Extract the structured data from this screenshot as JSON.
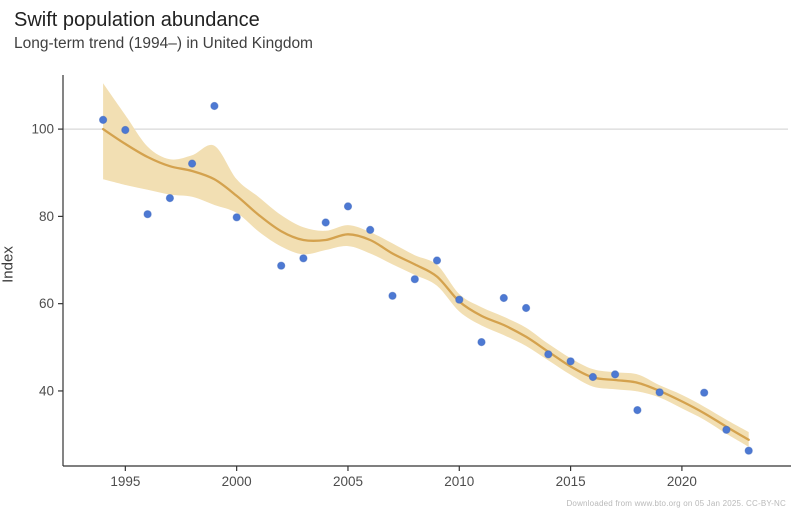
{
  "header": {
    "title": "Swift population abundance",
    "subtitle": "Long-term trend (1994–) in United Kingdom"
  },
  "footer": {
    "attribution": "Downloaded from www.bto.org on 05 Jan 2025. CC-BY-NC"
  },
  "chart_data": {
    "type": "scatter",
    "title": "Swift population abundance",
    "subtitle": "Long-term trend (1994–) in United Kingdom",
    "xlabel": "",
    "ylabel": "Index",
    "legend": "none",
    "grid": "single horizontal reference line at index 100",
    "reference_line_y": 100,
    "xlim": [
      1992.2,
      2024.9
    ],
    "ylim": [
      22.8,
      112.4
    ],
    "x_ticks": [
      1995,
      2000,
      2005,
      2010,
      2015,
      2020
    ],
    "y_ticks": [
      40,
      60,
      80,
      100
    ],
    "years": [
      1994,
      1995,
      1996,
      1997,
      1998,
      1999,
      2000,
      2001,
      2002,
      2003,
      2004,
      2005,
      2006,
      2007,
      2008,
      2009,
      2010,
      2011,
      2012,
      2013,
      2014,
      2015,
      2016,
      2017,
      2018,
      2019,
      2020,
      2021,
      2022,
      2023
    ],
    "series": [
      {
        "name": "annual index points",
        "type": "scatter",
        "values": [
          102.1,
          99.8,
          80.5,
          84.2,
          92.1,
          105.3,
          79.8,
          null,
          68.7,
          70.4,
          78.6,
          82.3,
          76.9,
          61.8,
          65.6,
          69.9,
          60.9,
          51.2,
          61.3,
          59.0,
          48.4,
          46.8,
          43.2,
          43.8,
          35.6,
          39.7,
          null,
          39.6,
          31.1,
          26.3
        ]
      },
      {
        "name": "smoothed trend",
        "type": "line",
        "values": [
          100.0,
          96.6,
          93.6,
          91.5,
          90.4,
          88.5,
          84.7,
          80.3,
          76.6,
          74.6,
          74.6,
          75.9,
          74.6,
          71.5,
          69.0,
          66.2,
          60.5,
          57.2,
          55.1,
          52.4,
          49.0,
          45.6,
          43.1,
          42.5,
          41.9,
          40.0,
          37.6,
          34.9,
          31.8,
          28.8
        ]
      },
      {
        "name": "confidence band lower",
        "type": "band-lower",
        "values": [
          88.5,
          87.2,
          86.1,
          85.0,
          84.5,
          82.6,
          80.8,
          76.5,
          73.1,
          71.3,
          72.3,
          73.2,
          71.5,
          69.0,
          66.6,
          64.1,
          58.2,
          55.0,
          52.8,
          50.3,
          47.0,
          43.7,
          41.0,
          40.4,
          39.9,
          38.5,
          36.0,
          33.4,
          30.2,
          27.2
        ]
      },
      {
        "name": "confidence band upper",
        "type": "band-upper",
        "values": [
          110.5,
          103.2,
          96.0,
          93.1,
          94.0,
          96.2,
          88.5,
          84.4,
          80.3,
          77.5,
          76.7,
          78.0,
          76.4,
          73.8,
          71.1,
          68.9,
          62.2,
          59.2,
          57.0,
          54.5,
          50.8,
          47.5,
          45.0,
          44.3,
          43.8,
          41.3,
          39.1,
          36.4,
          33.4,
          30.6
        ]
      }
    ],
    "colors": {
      "point_fill": "#4d79d3",
      "point_edge": "#3e68c0",
      "trend_line": "#d4a24e",
      "band_fill": "#f2dfb3",
      "reference_line": "#d9d9d9",
      "axis_line": "#333333",
      "tick_label": "#4d4d4d"
    }
  }
}
